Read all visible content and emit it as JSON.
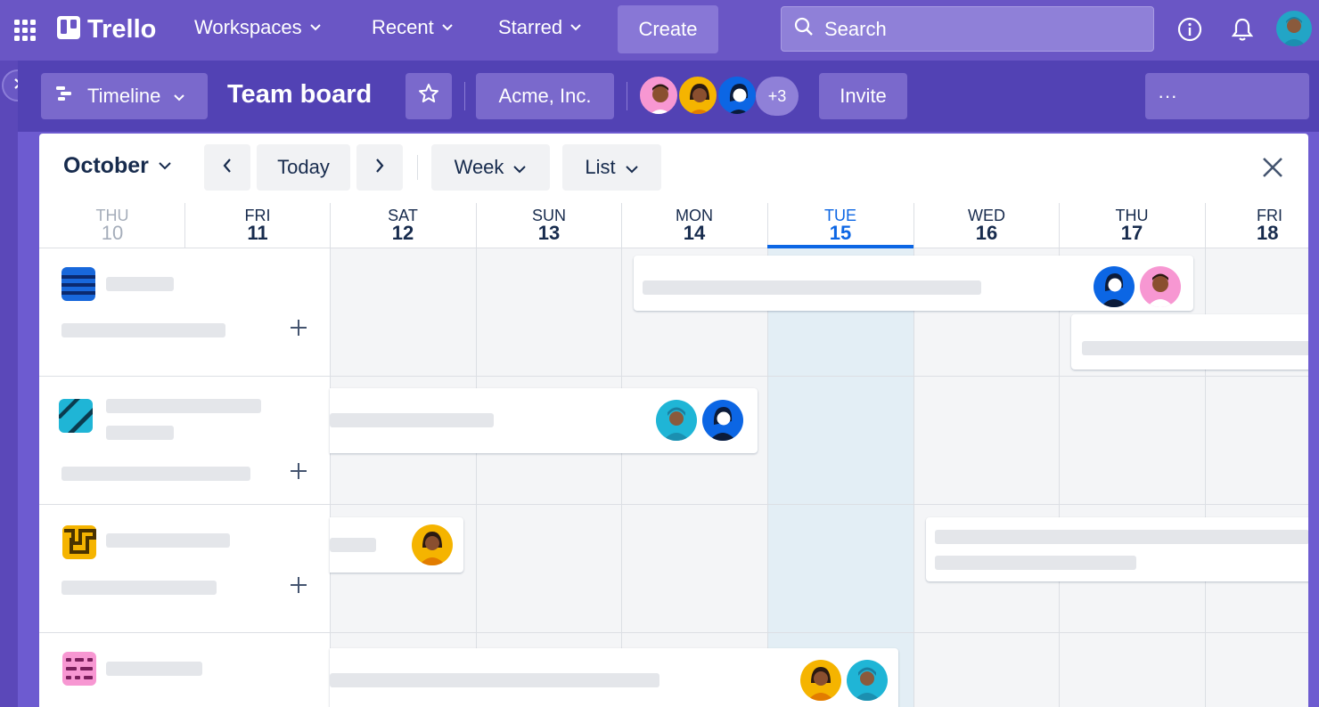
{
  "topbar": {
    "brand": "Trello",
    "menu": [
      "Workspaces",
      "Recent",
      "Starred"
    ],
    "create_label": "Create",
    "search_placeholder": "Search"
  },
  "board": {
    "view_label": "Timeline",
    "title": "Team board",
    "workspace_label": "Acme, Inc.",
    "extra_members": "+3",
    "invite_label": "Invite",
    "more_label": "···"
  },
  "timeline": {
    "month_label": "October",
    "today_label": "Today",
    "scale_label": "Week",
    "group_label": "List",
    "days": [
      {
        "dow": "THU",
        "num": "10"
      },
      {
        "dow": "FRI",
        "num": "11"
      },
      {
        "dow": "SAT",
        "num": "12"
      },
      {
        "dow": "SUN",
        "num": "13"
      },
      {
        "dow": "MON",
        "num": "14"
      },
      {
        "dow": "TUE",
        "num": "15"
      },
      {
        "dow": "WED",
        "num": "16"
      },
      {
        "dow": "THU",
        "num": "17"
      },
      {
        "dow": "FRI",
        "num": "18"
      }
    ]
  },
  "colors": {
    "topbar": "#6a56c5",
    "boardbar": "#5242b4",
    "today_accent": "#0c66e4",
    "today_column": "#e3eef5"
  },
  "icons": [
    "apps-grid-icon",
    "trello-logo-icon",
    "search-icon",
    "info-icon",
    "bell-icon",
    "timeline-icon",
    "star-icon",
    "chevron-left-icon",
    "chevron-right-icon",
    "close-icon",
    "plus-icon"
  ]
}
